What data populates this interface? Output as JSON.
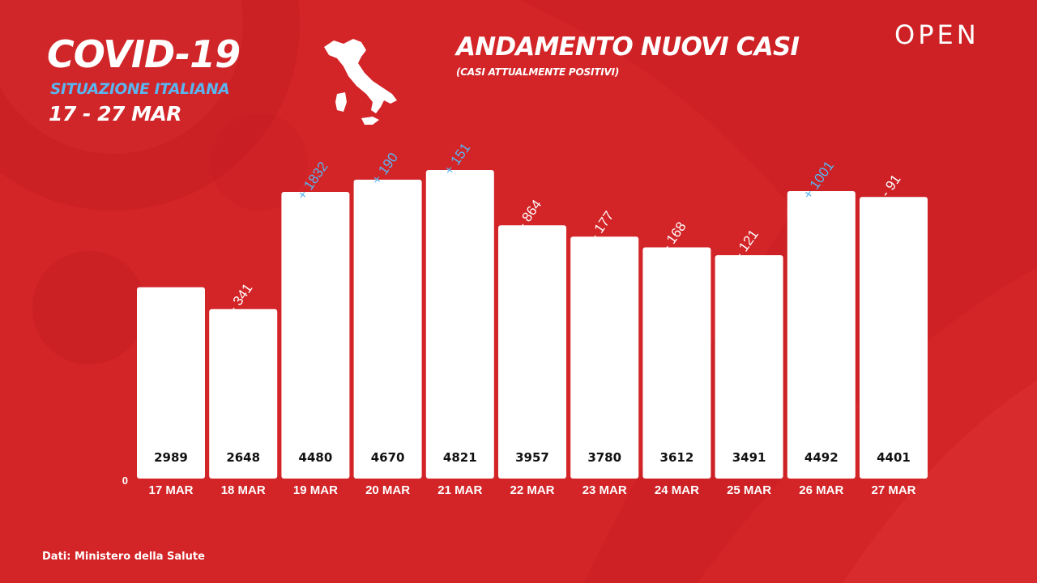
{
  "header": {
    "title": "COVID-19",
    "subtitle": "SITUAZIONE ITALIANA",
    "date_range": "17 - 27 MAR"
  },
  "chart_header": {
    "title": "ANDAMENTO NUOVI CASI",
    "subtitle": "(CASI ATTUALMENTE POSITIVI)"
  },
  "logo": "OPEN",
  "source": "Dati: Ministero della Salute",
  "colors": {
    "background": "#d32427",
    "bar": "#ffffff",
    "positive_delta": "#5ab5f0",
    "negative_delta": "#ffffff",
    "value_text": "#111111"
  },
  "chart_data": {
    "type": "bar",
    "title": "ANDAMENTO NUOVI CASI",
    "subtitle": "(CASI ATTUALMENTE POSITIVI)",
    "categories": [
      "17 MAR",
      "18 MAR",
      "19 MAR",
      "20 MAR",
      "21 MAR",
      "22 MAR",
      "23 MAR",
      "24 MAR",
      "25 MAR",
      "26 MAR",
      "27 MAR"
    ],
    "values": [
      2989,
      2648,
      4480,
      4670,
      4821,
      3957,
      3780,
      3612,
      3491,
      4492,
      4401
    ],
    "deltas": [
      "",
      "- 341",
      "+ 1832",
      "+ 190",
      "+ 151",
      "- 864",
      "- 177",
      "- 168",
      "- 121",
      "+ 1001",
      "- 91"
    ],
    "y_tick_labels": [
      "0"
    ],
    "ylim": [
      0,
      4821
    ],
    "grid": false,
    "legend": "none"
  }
}
